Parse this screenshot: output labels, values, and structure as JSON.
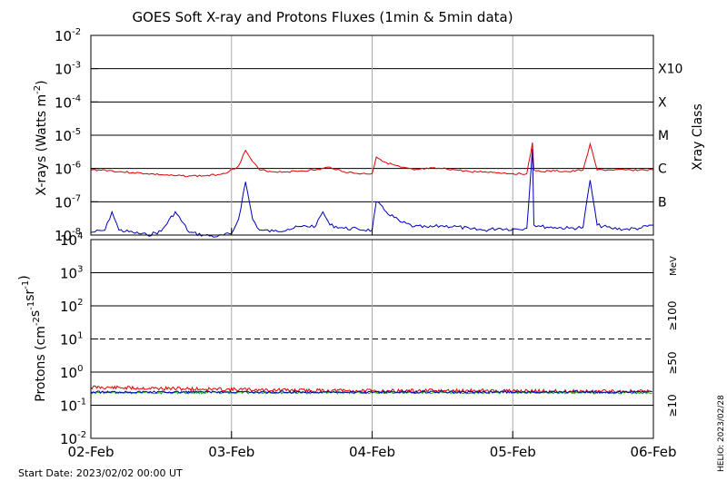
{
  "title": "GOES Soft X-ray and Protons Fluxes   (1min & 5min data)",
  "footer": {
    "start_date": "Start Date: 2023/02/02 00:00 UT",
    "helio": "HELIO: 2023/02/28"
  },
  "colors": {
    "xray_long": "#dd0000",
    "xray_short": "#0000bb",
    "p10": "#dd0000",
    "p50": "#0000bb",
    "p100": "#00bb00"
  },
  "chart_data": [
    {
      "type": "line",
      "name": "xray-panel",
      "ylabel": "X-rays (Watts m",
      "ylabel_sup": "-2",
      "ylabel_end": ")",
      "right_label": "Xray Class",
      "yscale": "log",
      "ylim": [
        1e-08,
        0.01
      ],
      "y_ticks": [
        {
          "base": "10",
          "exp": "-2"
        },
        {
          "base": "10",
          "exp": "-3"
        },
        {
          "base": "10",
          "exp": "-4"
        },
        {
          "base": "10",
          "exp": "-5"
        },
        {
          "base": "10",
          "exp": "-6"
        },
        {
          "base": "10",
          "exp": "-7"
        },
        {
          "base": "10",
          "exp": "-8"
        }
      ],
      "classes": [
        {
          "label": "X10",
          "level": 0.001
        },
        {
          "label": "X",
          "level": 0.0001
        },
        {
          "label": "M",
          "level": 1e-05
        },
        {
          "label": "C",
          "level": 1e-06
        },
        {
          "label": "B",
          "level": 1e-07
        }
      ],
      "xlim": [
        0,
        4
      ],
      "series": [
        {
          "key": "long",
          "x": [
            0,
            0.1,
            0.2,
            0.3,
            0.4,
            0.5,
            0.6,
            0.7,
            0.8,
            0.9,
            0.98,
            1.05,
            1.1,
            1.15,
            1.2,
            1.3,
            1.4,
            1.5,
            1.6,
            1.7,
            1.8,
            1.9,
            2.0,
            2.03,
            2.1,
            2.2,
            2.3,
            2.4,
            2.5,
            2.6,
            2.7,
            2.8,
            2.9,
            3.0,
            3.1,
            3.14,
            3.15,
            3.2,
            3.3,
            3.4,
            3.5,
            3.55,
            3.6,
            3.7,
            3.8,
            3.9,
            4.0
          ],
          "y": [
            9e-07,
            9e-07,
            8e-07,
            7.5e-07,
            7e-07,
            6.5e-07,
            6e-07,
            6e-07,
            6e-07,
            6.5e-07,
            8e-07,
            1.2e-06,
            3.5e-06,
            1.6e-06,
            9e-07,
            8e-07,
            8e-07,
            8.5e-07,
            9e-07,
            1.1e-06,
            8e-07,
            7e-07,
            7e-07,
            2.2e-06,
            1.5e-06,
            1.1e-06,
            9e-07,
            1e-06,
            1e-06,
            9e-07,
            8e-07,
            8e-07,
            7.5e-07,
            7e-07,
            7e-07,
            6e-06,
            9e-07,
            8e-07,
            8.5e-07,
            8e-07,
            9e-07,
            5.5e-06,
            9e-07,
            9e-07,
            9e-07,
            9e-07,
            9e-07
          ]
        },
        {
          "key": "short",
          "x": [
            0,
            0.1,
            0.15,
            0.2,
            0.3,
            0.4,
            0.5,
            0.6,
            0.7,
            0.8,
            0.9,
            1.0,
            1.05,
            1.1,
            1.15,
            1.2,
            1.3,
            1.4,
            1.5,
            1.6,
            1.65,
            1.7,
            1.8,
            1.9,
            2.0,
            2.03,
            2.1,
            2.2,
            2.3,
            2.4,
            2.5,
            2.6,
            2.7,
            2.8,
            2.9,
            3.0,
            3.1,
            3.14,
            3.15,
            3.2,
            3.3,
            3.4,
            3.5,
            3.55,
            3.6,
            3.7,
            3.8,
            3.9,
            4.0
          ],
          "y": [
            1.2e-08,
            1.4e-08,
            5e-08,
            1.4e-08,
            1.2e-08,
            1e-08,
            1.3e-08,
            5e-08,
            1.2e-08,
            1e-08,
            9e-09,
            1.1e-08,
            3e-08,
            4e-07,
            3e-08,
            1.4e-08,
            1.3e-08,
            1.5e-08,
            1.8e-08,
            1.9e-08,
            5e-08,
            2e-08,
            1.6e-08,
            1.5e-08,
            1.4e-08,
            1e-07,
            5e-08,
            2.5e-08,
            1.8e-08,
            1.7e-08,
            1.9e-08,
            1.8e-08,
            1.5e-08,
            1.4e-08,
            1.6e-08,
            1.5e-08,
            1.6e-08,
            4e-06,
            2e-08,
            1.8e-08,
            1.7e-08,
            1.6e-08,
            1.7e-08,
            4.5e-07,
            2e-08,
            1.6e-08,
            1.5e-08,
            1.6e-08,
            2e-08
          ]
        }
      ]
    },
    {
      "type": "line",
      "name": "proton-panel",
      "ylabel": "Protons (cm",
      "ylabel_parts": [
        {
          "t": "Protons (cm",
          "sup": false
        },
        {
          "t": "-2",
          "sup": true
        },
        {
          "t": "s",
          "sup": false
        },
        {
          "t": "-1",
          "sup": true
        },
        {
          "t": "sr",
          "sup": false
        },
        {
          "t": "-1",
          "sup": true
        },
        {
          "t": ")",
          "sup": false
        }
      ],
      "yscale": "log",
      "ylim": [
        0.01,
        10000
      ],
      "y_ticks": [
        {
          "base": "10",
          "exp": "4"
        },
        {
          "base": "10",
          "exp": "3"
        },
        {
          "base": "10",
          "exp": "2"
        },
        {
          "base": "10",
          "exp": "1"
        },
        {
          "base": "10",
          "exp": "0"
        },
        {
          "base": "10",
          "exp": "-1"
        },
        {
          "base": "10",
          "exp": "-2"
        }
      ],
      "threshold": 10,
      "energy_unit": "MeV",
      "energy_labels": [
        {
          "key": "p100",
          "label": "≥100"
        },
        {
          "key": "p50",
          "label": "≥50"
        },
        {
          "key": "p10",
          "label": "≥10"
        }
      ],
      "xlim": [
        0,
        4
      ],
      "series": [
        {
          "key": "p10",
          "x": [
            0,
            0.5,
            1,
            1.5,
            2,
            2.5,
            3,
            3.5,
            4
          ],
          "y": [
            0.35,
            0.32,
            0.3,
            0.28,
            0.27,
            0.27,
            0.27,
            0.26,
            0.26
          ]
        },
        {
          "key": "p100",
          "x": [
            0,
            0.5,
            1,
            1.5,
            2,
            2.5,
            3,
            3.5,
            4
          ],
          "y": [
            0.24,
            0.24,
            0.24,
            0.24,
            0.24,
            0.24,
            0.24,
            0.24,
            0.24
          ]
        },
        {
          "key": "p50",
          "x": [
            0,
            0.5,
            1,
            1.5,
            2,
            2.5,
            3,
            3.5,
            4
          ],
          "y": [
            0.25,
            0.25,
            0.25,
            0.25,
            0.25,
            0.25,
            0.25,
            0.25,
            0.25
          ]
        }
      ]
    }
  ],
  "x_ticks": [
    "02-Feb",
    "03-Feb",
    "04-Feb",
    "05-Feb",
    "06-Feb"
  ]
}
